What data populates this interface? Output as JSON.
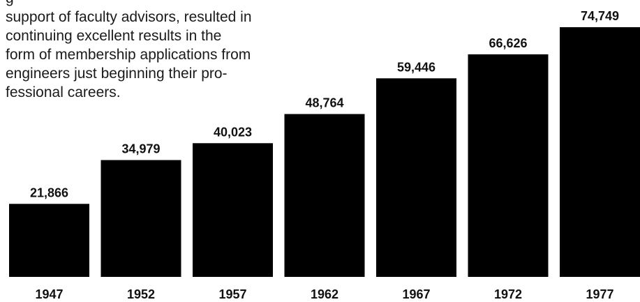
{
  "intro_text": {
    "lines": [
      "g",
      "support of faculty advisors, resulted in",
      "continuing excellent results in the",
      "form of membership applications from",
      "engineers just beginning their pro-",
      "fessional careers."
    ]
  },
  "colors": {
    "bar": "#000000",
    "text": "#111111",
    "background": "#ffffff"
  },
  "chart_data": {
    "type": "bar",
    "categories": [
      "1947",
      "1952",
      "1957",
      "1962",
      "1967",
      "1972",
      "1977"
    ],
    "values": [
      21866,
      34979,
      40023,
      48764,
      59446,
      66626,
      74749
    ],
    "value_labels": [
      "21,866",
      "34,979",
      "40,023",
      "48,764",
      "59,446",
      "66,626",
      "74,749"
    ],
    "title": "",
    "xlabel": "",
    "ylabel": "",
    "ylim": [
      0,
      74749
    ],
    "grid": false,
    "legend": "none"
  }
}
